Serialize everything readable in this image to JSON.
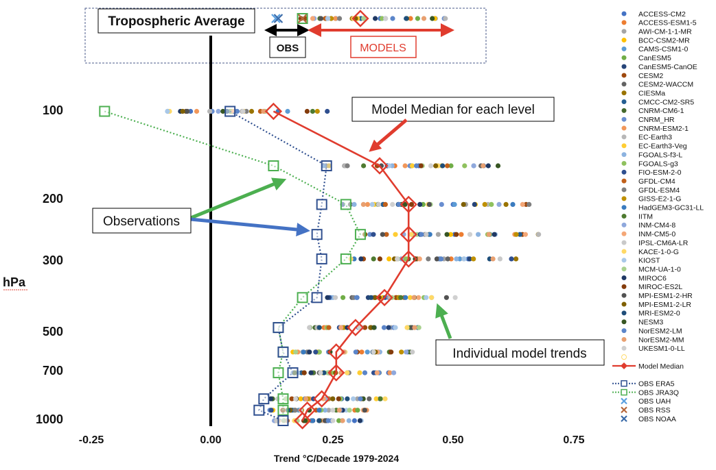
{
  "chart_data": {
    "type": "scatter",
    "title": "",
    "xlabel": "Trend °C/Decade 1979-2024",
    "ylabel": "hPa",
    "xlim": [
      -0.25,
      0.82
    ],
    "x_ticks": [
      "-0.25",
      "0.00",
      "0.25",
      "0.50",
      "0.75"
    ],
    "y_scale": "log",
    "y_ticks": [
      "100",
      "200",
      "300",
      "500",
      "700",
      "1000"
    ],
    "legend_position": "right",
    "levels_hpa": [
      100,
      150,
      200,
      250,
      300,
      400,
      500,
      600,
      700,
      850,
      925,
      1000
    ],
    "model_names": [
      "ACCESS-CM2",
      "ACCESS-ESM1-5",
      "AWI-CM-1-1-MR",
      "BCC-CSM2-MR",
      "CAMS-CSM1-0",
      "CanESM5",
      "CanESM5-CanOE",
      "CESM2",
      "CESM2-WACCM",
      "CIESMa",
      "CMCC-CM2-SR5",
      "CNRM-CM6-1",
      "CNRM_HR",
      "CNRM-ESM2-1",
      "EC-Earth3",
      "EC-Earth3-Veg",
      "FGOALS-f3-L",
      "FGOALS-g3",
      "FIO-ESM-2-0",
      "GFDL-CM4",
      "GFDL-ESM4",
      "GISS-E2-1-G",
      "HadGEM3-GC31-LL",
      "IITM",
      "INM-CM4-8",
      "INM-CM5-0",
      "IPSL-CM6A-LR",
      "KACE-1-0-G",
      "KIOST",
      "MCM-UA-1-0",
      "MIROC6",
      "MIROC-ES2L",
      "MPI-ESM1-2-HR",
      "MPI-ESM1-2-LR",
      "MRI-ESM2-0",
      "NESM3",
      "NorESM2-LM",
      "NorESM2-MM",
      "UKESM1-0-LL"
    ],
    "model_colors": [
      "#4472c4",
      "#ed7d31",
      "#a5a5a5",
      "#ffc000",
      "#5b9bd5",
      "#70ad47",
      "#264478",
      "#9e480e",
      "#636363",
      "#997300",
      "#255e91",
      "#43682b",
      "#698ed0",
      "#f1975a",
      "#b7b7b7",
      "#ffcd33",
      "#8cb3e0",
      "#8fc15e",
      "#2f4f8f",
      "#c0601a",
      "#7f7f7f",
      "#bf9000",
      "#3a7bbf",
      "#4e7a30",
      "#8fa8dc",
      "#f4a777",
      "#c9c9c9",
      "#ffd966",
      "#a9c8e8",
      "#a9d18e",
      "#1f3864",
      "#843c0c",
      "#525252",
      "#7f6000",
      "#1f4e79",
      "#375623",
      "#5b85c9",
      "#e8a070",
      "#d0d0d0"
    ],
    "model_ranges": [
      {
        "p": 100,
        "min": -0.09,
        "max": 0.25
      },
      {
        "p": 150,
        "min": 0.23,
        "max": 0.6
      },
      {
        "p": 200,
        "min": 0.26,
        "max": 0.67
      },
      {
        "p": 250,
        "min": 0.31,
        "max": 0.69
      },
      {
        "p": 300,
        "min": 0.29,
        "max": 0.65
      },
      {
        "p": 400,
        "min": 0.22,
        "max": 0.52
      },
      {
        "p": 500,
        "min": 0.2,
        "max": 0.44
      },
      {
        "p": 600,
        "min": 0.17,
        "max": 0.42
      },
      {
        "p": 700,
        "min": 0.17,
        "max": 0.38
      },
      {
        "p": 850,
        "min": 0.12,
        "max": 0.37
      },
      {
        "p": 925,
        "min": 0.12,
        "max": 0.33
      },
      {
        "p": 1000,
        "min": 0.13,
        "max": 0.32
      }
    ],
    "tropospheric_models": {
      "min": 0.17,
      "max": 0.49
    },
    "series": [
      {
        "name": "Model Median",
        "x": [
          0.13,
          0.35,
          0.41,
          0.41,
          0.41,
          0.36,
          0.3,
          0.26,
          0.26,
          0.23,
          0.2,
          0.19
        ],
        "y": [
          100,
          150,
          200,
          250,
          300,
          400,
          500,
          600,
          700,
          850,
          925,
          1000
        ],
        "tropospheric": 0.31
      },
      {
        "name": "OBS ERA5",
        "x": [
          0.04,
          0.24,
          0.23,
          0.22,
          0.23,
          0.22,
          0.14,
          0.15,
          0.17,
          0.11,
          0.1,
          0.15
        ],
        "y": [
          100,
          150,
          200,
          250,
          300,
          400,
          500,
          600,
          700,
          850,
          925,
          1000
        ]
      },
      {
        "name": "OBS JRA3Q",
        "x": [
          -0.22,
          0.13,
          0.28,
          0.31,
          0.28,
          0.19,
          0.14,
          0.15,
          0.14,
          0.15,
          0.15,
          0.15
        ],
        "y": [
          100,
          150,
          200,
          250,
          300,
          400,
          500,
          600,
          700,
          850,
          925,
          1000
        ],
        "tropospheric": 0.19
      },
      {
        "name": "OBS UAH",
        "tropospheric": 0.135
      },
      {
        "name": "OBS RSS",
        "tropospheric": 0.19
      },
      {
        "name": "OBS NOAA",
        "tropospheric": 0.14
      }
    ],
    "colors": {
      "median": "#e03c2e",
      "era5": "#2f4f8f",
      "jra3q": "#4caf50",
      "uah": "#5aa0e0",
      "rss": "#b5673a",
      "noaa": "#3a6aa8"
    },
    "legend": {
      "model_median": "Model Median",
      "obs_era5": "OBS ERA5",
      "obs_jra3q": "OBS JRA3Q",
      "obs_uah": "OBS UAH",
      "obs_rss": "OBS RSS",
      "obs_noaa": "OBS NOAA"
    },
    "annotations": {
      "tropospheric_average": "Tropospheric Average",
      "obs": "OBS",
      "models": "MODELS",
      "model_median_label": "Model Median for each level",
      "observations": "Observations",
      "individual_model_trends": "Individual model trends"
    }
  }
}
